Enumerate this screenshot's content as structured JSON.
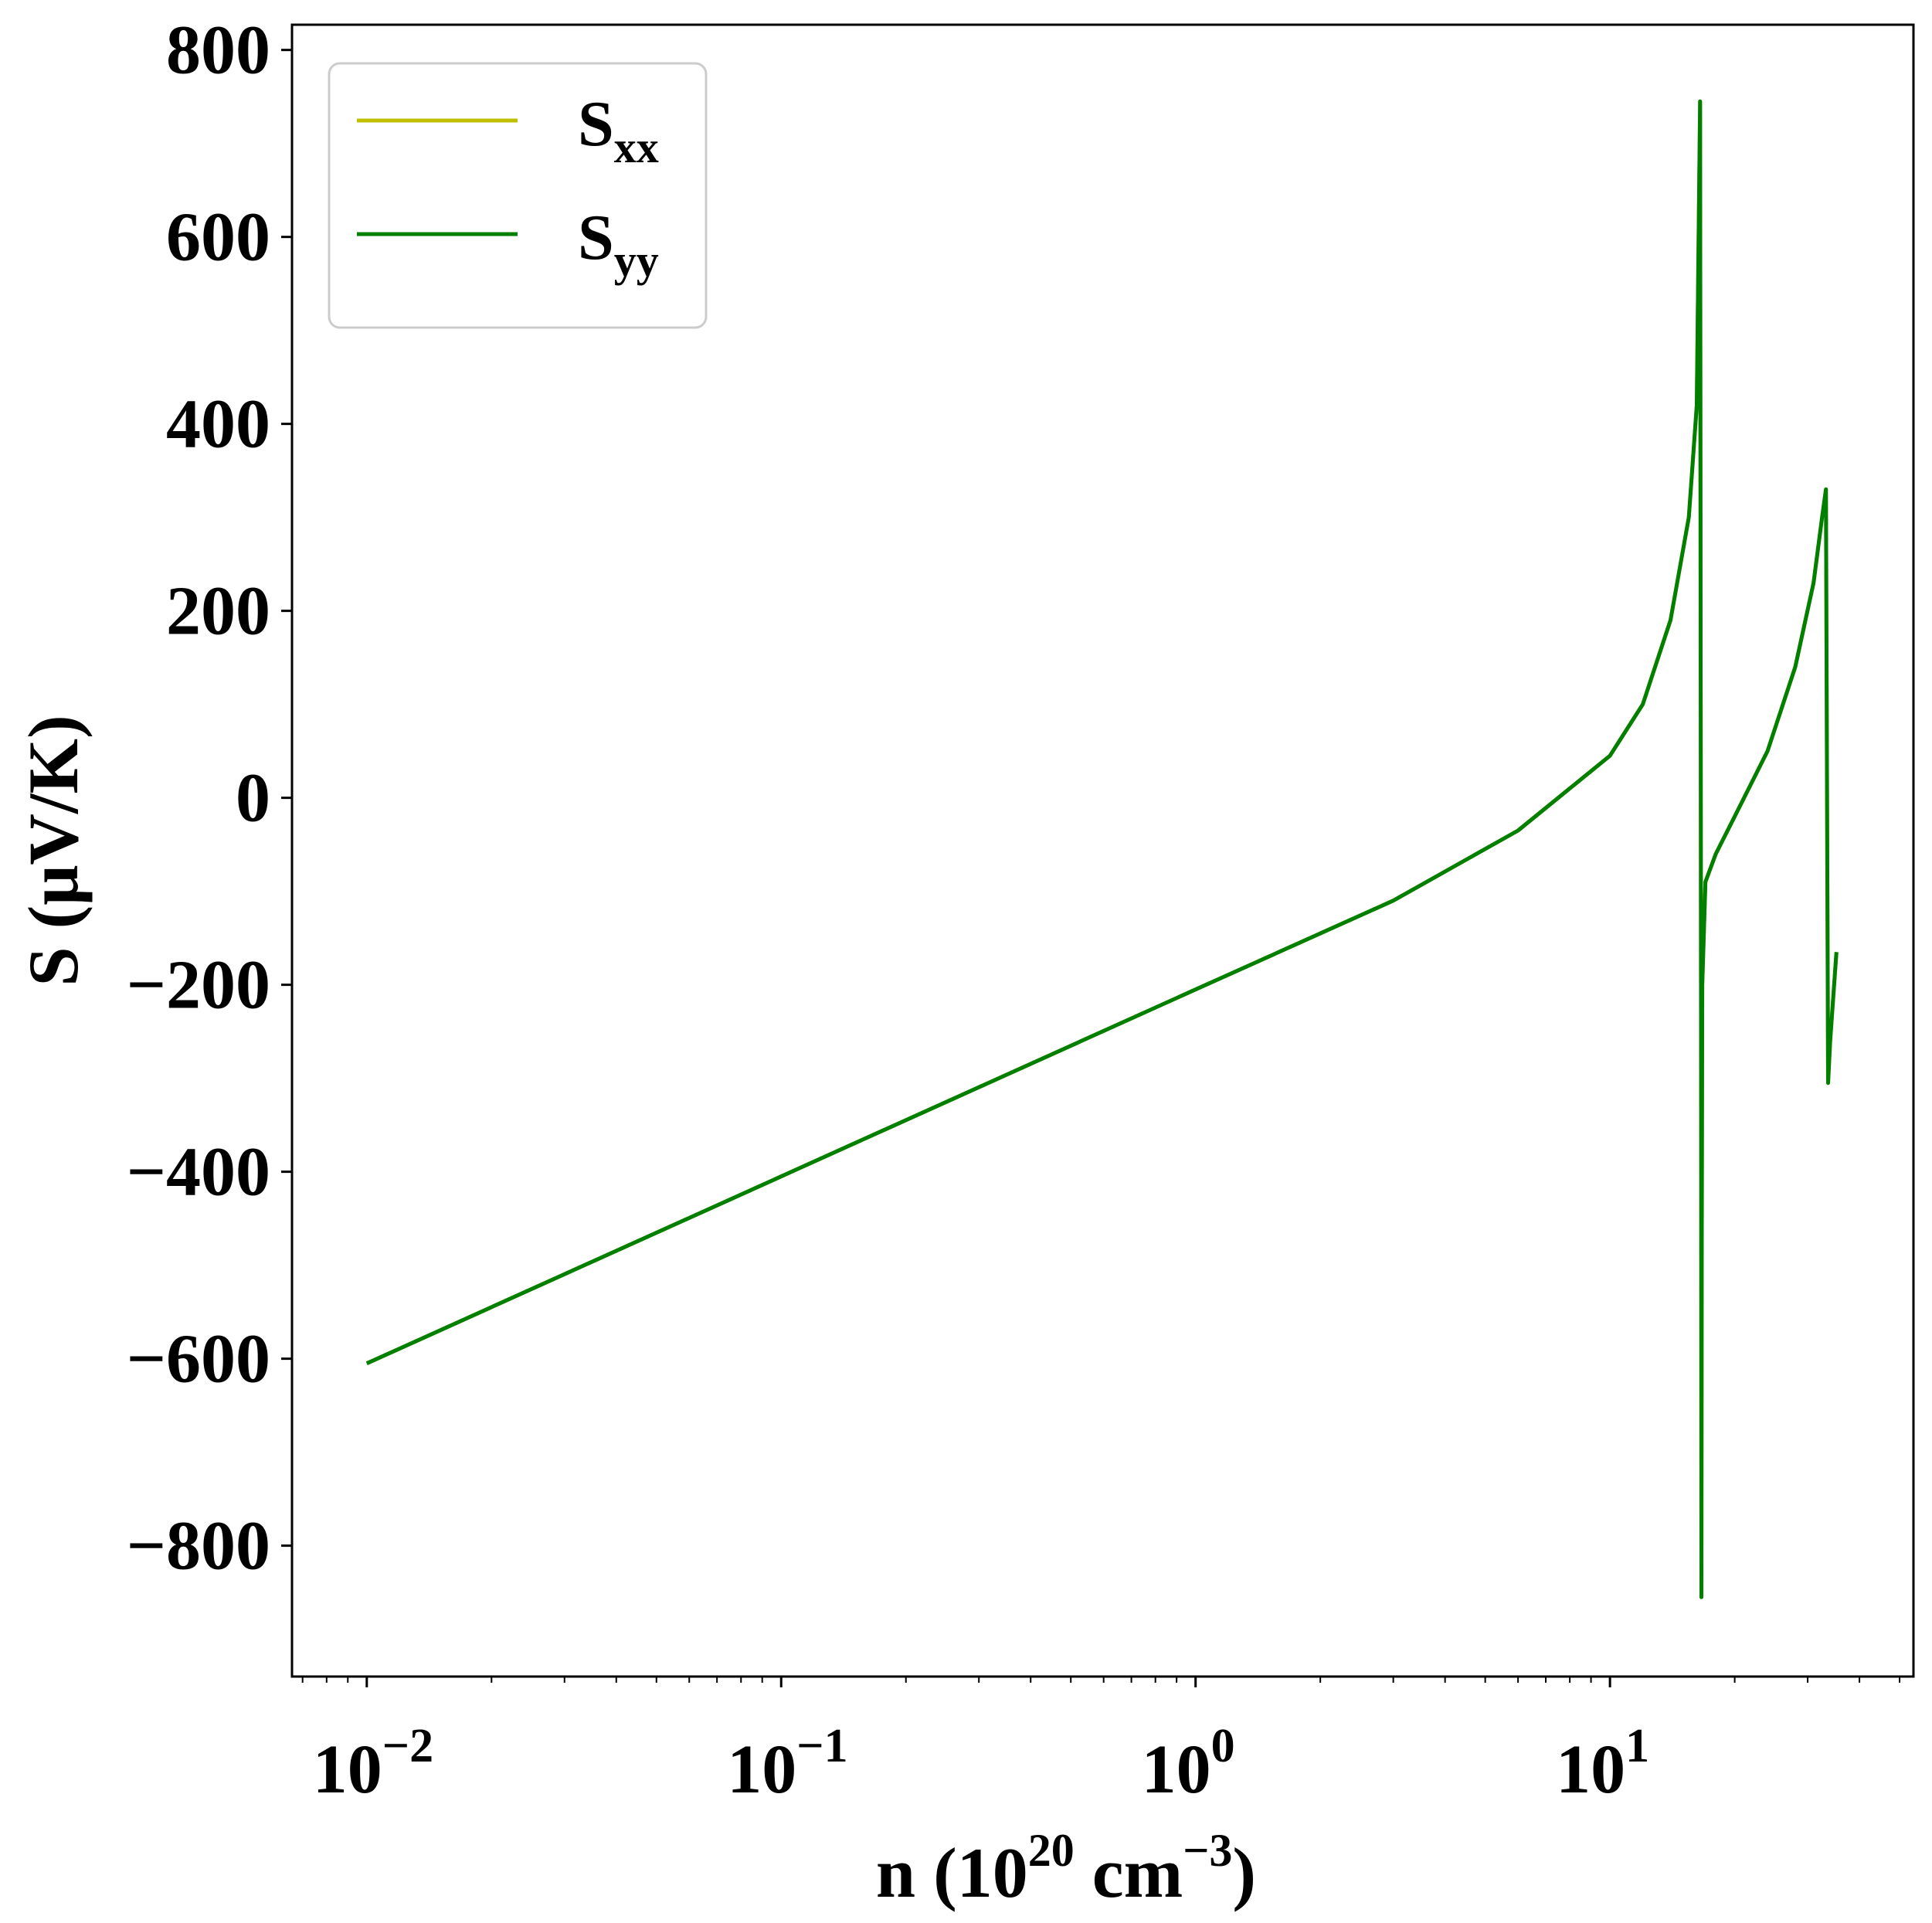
{
  "chart_data": {
    "type": "line",
    "xlabel": "n (10^20 cm^-3)",
    "xlabel_parts": {
      "prefix": "n (10",
      "exp1": "20",
      "mid": " cm",
      "exp2": "−3",
      "suffix": ")"
    },
    "ylabel": "S (μV/K)",
    "x_scale": "log",
    "xlim": [
      0.0066,
      54
    ],
    "ylim": [
      -940,
      827
    ],
    "y_ticks": [
      800,
      600,
      400,
      200,
      0,
      -200,
      -400,
      -600,
      -800
    ],
    "y_tick_labels": [
      "800",
      "600",
      "400",
      "200",
      "0",
      "−200",
      "−400",
      "−600",
      "−800"
    ],
    "x_ticks": [
      {
        "value": 0.01,
        "base": "10",
        "exp": "−2"
      },
      {
        "value": 0.1,
        "base": "10",
        "exp": "−1"
      },
      {
        "value": 1,
        "base": "10",
        "exp": "0"
      },
      {
        "value": 10,
        "base": "10",
        "exp": "1"
      }
    ],
    "grid": false,
    "legend_position": "top-left",
    "series": [
      {
        "name": "S",
        "subscript": "xx",
        "color": "#bfbf00",
        "x": [
          0.01,
          0.1,
          1,
          3,
          6,
          10,
          12,
          14,
          15.5,
          16.2,
          16.5,
          16.6,
          16.62,
          16.65,
          16.7,
          17,
          18,
          20,
          24,
          28,
          31,
          32.5,
          33.2,
          33.6,
          34,
          34.5,
          35.2
        ],
        "y": [
          -605,
          -405,
          -205,
          -110,
          -35,
          45,
          100,
          190,
          300,
          420,
          745,
          -400,
          -855,
          -500,
          -200,
          -90,
          -60,
          -20,
          50,
          140,
          230,
          300,
          330,
          -305,
          -260,
          -220,
          -165
        ]
      },
      {
        "name": "S",
        "subscript": "yy",
        "color": "#007f00",
        "x": [
          0.01,
          0.1,
          1,
          3,
          6,
          10,
          12,
          14,
          15.5,
          16.2,
          16.5,
          16.6,
          16.62,
          16.65,
          16.7,
          17,
          18,
          20,
          24,
          28,
          31,
          32.5,
          33.2,
          33.6,
          34,
          34.5,
          35.2
        ],
        "y": [
          -605,
          -405,
          -205,
          -110,
          -35,
          45,
          100,
          190,
          300,
          420,
          745,
          -400,
          -855,
          -500,
          -200,
          -90,
          -60,
          -20,
          50,
          140,
          230,
          300,
          330,
          -305,
          -260,
          -220,
          -165
        ]
      }
    ]
  }
}
